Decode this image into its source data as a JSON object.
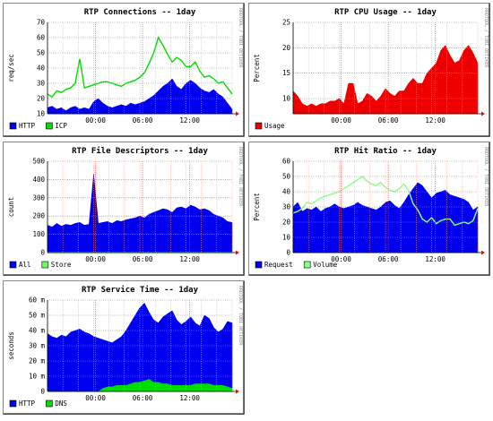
{
  "side_text": "RRDTOOL / TOBI OETIKER",
  "x_ticks": [
    "00:00",
    "06:00",
    "12:00"
  ],
  "chart_data": [
    {
      "id": "connections",
      "type": "area",
      "title": "RTP Connections -- 1day",
      "ylabel": "req/sec",
      "ylim": [
        10,
        70
      ],
      "yticks": [
        10,
        20,
        30,
        40,
        50,
        60,
        70
      ],
      "ytick_labels": [
        "10",
        "20",
        "30",
        "40",
        "50",
        "60",
        "70"
      ],
      "grid": true,
      "legend_position": "bottom-left",
      "series": [
        {
          "name": "HTTP",
          "style": "area",
          "color": "#0000ee",
          "values": [
            14,
            15,
            13,
            14,
            12,
            14,
            15,
            13,
            14,
            13,
            18,
            20,
            17,
            15,
            14,
            15,
            16,
            15,
            17,
            16,
            17,
            18,
            20,
            22,
            25,
            28,
            30,
            33,
            28,
            26,
            30,
            32,
            30,
            27,
            25,
            24,
            26,
            23,
            21,
            17,
            13
          ]
        },
        {
          "name": "ICP",
          "style": "line",
          "color": "#00dd00",
          "values": [
            23,
            21,
            25,
            24,
            26,
            27,
            30,
            46,
            27,
            28,
            29,
            30,
            31,
            31,
            30,
            29,
            28,
            30,
            31,
            32,
            34,
            37,
            43,
            50,
            60,
            55,
            49,
            44,
            47,
            45,
            41,
            41,
            44,
            38,
            34,
            35,
            33,
            30,
            31,
            27,
            23
          ]
        }
      ]
    },
    {
      "id": "cpu",
      "type": "area",
      "title": "RTP CPU Usage -- 1day",
      "ylabel": "Percent",
      "ylim": [
        7,
        25
      ],
      "yticks": [
        10,
        15,
        20,
        25
      ],
      "ytick_labels": [
        "10",
        "15",
        "20",
        "25"
      ],
      "grid": true,
      "legend_position": "bottom-left",
      "series": [
        {
          "name": "Usage",
          "style": "area",
          "color": "#ee0000",
          "values": [
            11.5,
            10.5,
            9,
            8.5,
            9,
            8.5,
            9,
            9,
            9.5,
            9.5,
            10,
            9,
            13,
            13,
            9,
            9.5,
            11,
            10.5,
            9.5,
            10.5,
            12,
            11,
            10.5,
            11.5,
            11.5,
            13,
            14,
            13,
            13,
            15,
            16,
            17,
            19.5,
            20.5,
            18.5,
            17,
            17.5,
            19.5,
            20.5,
            19,
            17
          ]
        }
      ]
    },
    {
      "id": "fd",
      "type": "area",
      "title": "RTP File Descriptors -- 1day",
      "ylabel": "count",
      "ylim": [
        0,
        500
      ],
      "yticks": [
        0,
        100,
        200,
        300,
        400,
        500
      ],
      "ytick_labels": [
        "0",
        "100",
        "200",
        "300",
        "400",
        "500"
      ],
      "grid": true,
      "legend_position": "bottom-left",
      "series": [
        {
          "name": "All",
          "style": "area",
          "color": "#0000ee",
          "values": [
            150,
            140,
            160,
            145,
            155,
            150,
            160,
            165,
            150,
            155,
            430,
            160,
            165,
            170,
            160,
            175,
            170,
            180,
            185,
            190,
            200,
            190,
            210,
            220,
            230,
            240,
            235,
            220,
            245,
            250,
            240,
            260,
            250,
            235,
            240,
            230,
            210,
            200,
            190,
            170,
            165
          ]
        },
        {
          "name": "Store",
          "style": "line",
          "color": "#66ff66",
          "values": [
            0,
            0,
            0,
            0,
            0,
            0,
            0,
            0,
            0,
            0,
            0,
            0,
            0,
            0,
            0,
            0,
            0,
            0,
            0,
            0,
            0,
            0,
            0,
            0,
            0,
            0,
            0,
            0,
            0,
            0,
            0,
            0,
            0,
            0,
            0,
            0,
            0,
            0,
            0,
            0,
            0
          ]
        }
      ]
    },
    {
      "id": "hit",
      "type": "area",
      "title": "RTP Hit Ratio -- 1day",
      "ylabel": "Percent",
      "ylim": [
        0,
        60
      ],
      "yticks": [
        0,
        10,
        20,
        30,
        40,
        50,
        60
      ],
      "ytick_labels": [
        "0",
        "10",
        "20",
        "30",
        "40",
        "50",
        "60"
      ],
      "grid": true,
      "legend_position": "bottom-left",
      "series": [
        {
          "name": "Request",
          "style": "area",
          "color": "#0000ee",
          "values": [
            30,
            33,
            27,
            29,
            28,
            30,
            27,
            29,
            30,
            32,
            30,
            29,
            30,
            31,
            33,
            31,
            30,
            29,
            28,
            30,
            33,
            34,
            31,
            29,
            33,
            38,
            42,
            46,
            44,
            40,
            36,
            39,
            40,
            41,
            38,
            37,
            36,
            35,
            33,
            28,
            30
          ]
        },
        {
          "name": "Volume",
          "style": "line",
          "color": "#88ff88",
          "values": [
            26,
            27,
            29,
            33,
            32,
            34,
            36,
            37,
            38,
            39,
            40,
            42,
            44,
            46,
            48,
            50,
            47,
            45,
            44,
            46,
            43,
            41,
            40,
            42,
            45,
            41,
            32,
            28,
            22,
            20,
            23,
            19,
            21,
            22,
            22,
            18,
            19,
            20,
            19,
            21,
            29
          ]
        }
      ]
    },
    {
      "id": "svc",
      "type": "area",
      "title": "RTP Service Time -- 1day",
      "ylabel": "seconds",
      "ylim": [
        0,
        0.06
      ],
      "yticks": [
        0,
        0.01,
        0.02,
        0.03,
        0.04,
        0.05,
        0.06
      ],
      "ytick_labels": [
        "0",
        "10 m",
        "20 m",
        "30 m",
        "40 m",
        "50 m",
        "60 m"
      ],
      "grid": true,
      "legend_position": "bottom-left",
      "series": [
        {
          "name": "HTTP",
          "style": "area",
          "color": "#0000ee",
          "values": [
            0.038,
            0.036,
            0.035,
            0.037,
            0.036,
            0.039,
            0.04,
            0.041,
            0.039,
            0.038,
            0.036,
            0.035,
            0.034,
            0.033,
            0.032,
            0.034,
            0.036,
            0.04,
            0.045,
            0.05,
            0.055,
            0.058,
            0.052,
            0.047,
            0.045,
            0.049,
            0.051,
            0.053,
            0.047,
            0.044,
            0.046,
            0.049,
            0.045,
            0.043,
            0.05,
            0.048,
            0.042,
            0.039,
            0.041,
            0.046,
            0.045
          ]
        },
        {
          "name": "DNS",
          "style": "area",
          "color": "#00dd00",
          "values": [
            0,
            0,
            0,
            0,
            0,
            0,
            0,
            0,
            0,
            0,
            0,
            0,
            0.002,
            0.003,
            0.003,
            0.004,
            0.004,
            0.004,
            0.005,
            0.006,
            0.006,
            0.007,
            0.008,
            0.006,
            0.006,
            0.005,
            0.005,
            0.004,
            0.004,
            0.004,
            0.004,
            0.004,
            0.005,
            0.005,
            0.005,
            0.005,
            0.004,
            0.004,
            0.004,
            0.003,
            0.002
          ]
        }
      ]
    }
  ]
}
